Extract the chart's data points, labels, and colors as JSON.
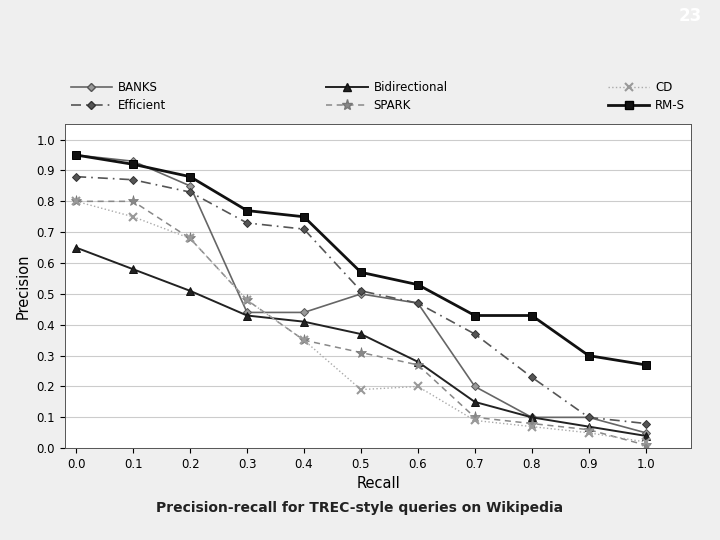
{
  "recall": [
    0.0,
    0.1,
    0.2,
    0.3,
    0.4,
    0.5,
    0.6,
    0.7,
    0.8,
    0.9,
    1.0
  ],
  "BANKS": [
    0.95,
    0.93,
    0.85,
    0.44,
    0.44,
    0.5,
    0.47,
    0.2,
    0.1,
    0.1,
    0.05
  ],
  "Efficient": [
    0.88,
    0.87,
    0.83,
    0.73,
    0.71,
    0.51,
    0.47,
    0.37,
    0.23,
    0.1,
    0.08
  ],
  "Bidirectional": [
    0.65,
    0.58,
    0.51,
    0.43,
    0.41,
    0.37,
    0.28,
    0.15,
    0.1,
    0.07,
    0.04
  ],
  "SPARK": [
    0.8,
    0.8,
    0.68,
    0.48,
    0.35,
    0.31,
    0.27,
    0.1,
    0.08,
    0.06,
    0.01
  ],
  "CD": [
    0.8,
    0.75,
    0.68,
    0.48,
    0.35,
    0.19,
    0.2,
    0.09,
    0.07,
    0.05,
    0.02
  ],
  "RMS": [
    0.95,
    0.92,
    0.88,
    0.77,
    0.75,
    0.57,
    0.53,
    0.43,
    0.43,
    0.3,
    0.27
  ],
  "header_color": "#7ab3d4",
  "header_number": "23",
  "title": "Precision-recall for TREC-style queries on Wikipedia",
  "page_bg": "#efefef",
  "plot_bg": "#ffffff",
  "grid_color": "#cccccc"
}
